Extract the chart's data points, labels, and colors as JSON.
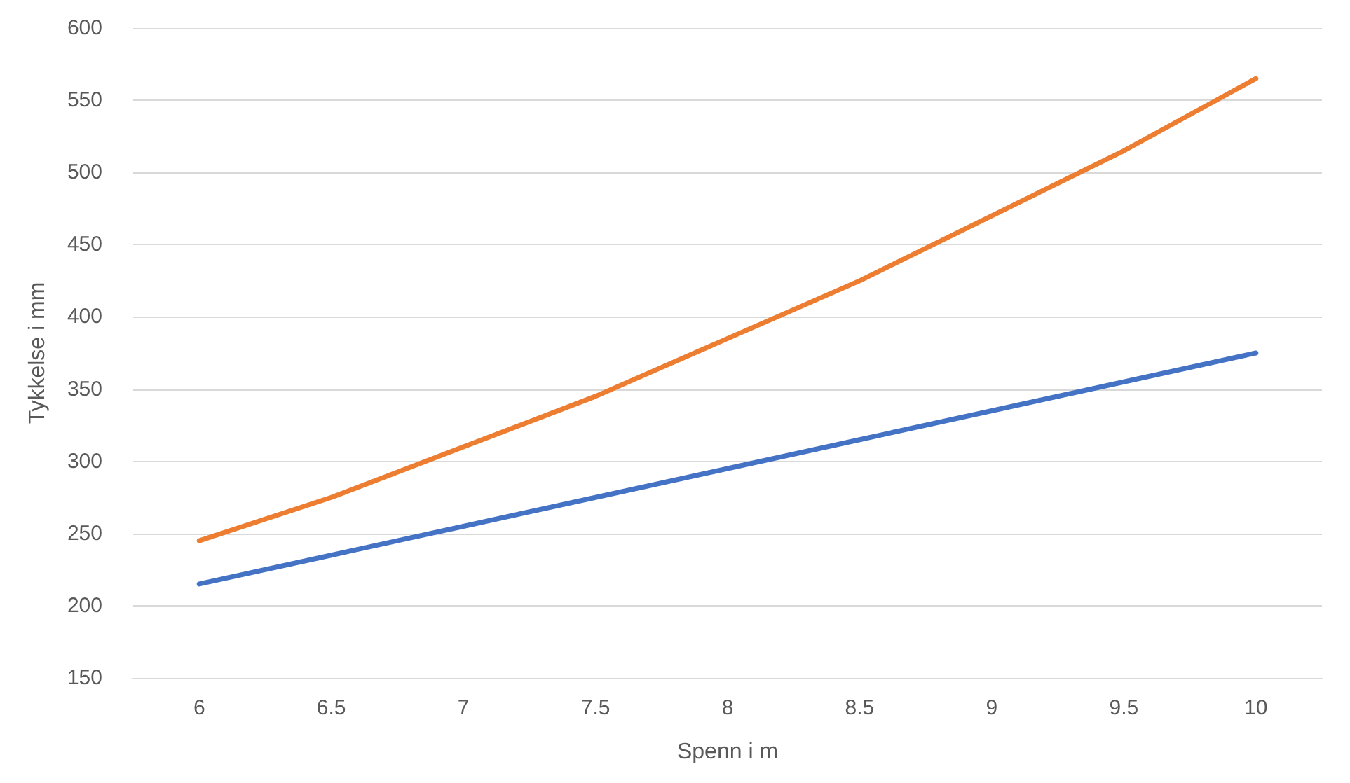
{
  "chart_data": {
    "type": "line",
    "xlabel": "Spenn i m",
    "ylabel": "Tykkelse i mm",
    "categories": [
      "6",
      "6.5",
      "7",
      "7.5",
      "8",
      "8.5",
      "9",
      "9.5",
      "10"
    ],
    "series": [
      {
        "color": "#4472c4",
        "values": [
          215,
          235,
          255,
          275,
          295,
          315,
          335,
          355,
          375
        ]
      },
      {
        "color": "#ed7d31",
        "values": [
          245,
          275,
          310,
          345,
          385,
          425,
          470,
          515,
          565
        ]
      }
    ],
    "ylim": [
      150,
      600
    ],
    "yticks": [
      150,
      200,
      250,
      300,
      350,
      400,
      450,
      500,
      550,
      600
    ],
    "grid": "y",
    "marker": "none",
    "line_style": "solid"
  }
}
